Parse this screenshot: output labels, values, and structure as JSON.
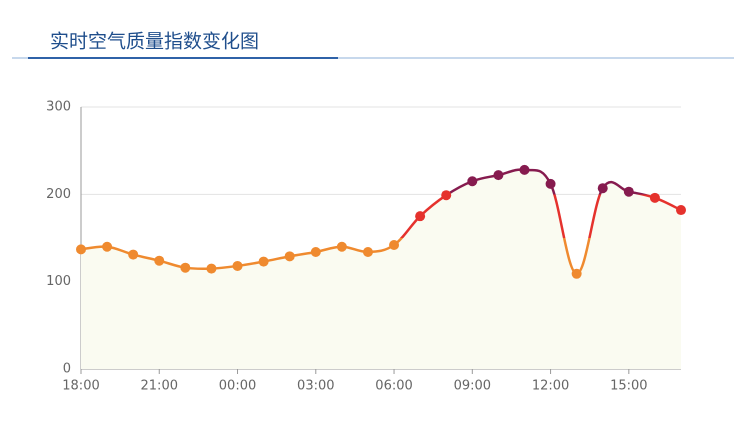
{
  "chart_data": {
    "type": "line",
    "title": "实时空气质量指数变化图",
    "categories": [
      "18:00",
      null,
      null,
      "21:00",
      null,
      null,
      "00:00",
      null,
      null,
      "03:00",
      null,
      null,
      "06:00",
      null,
      null,
      "09:00",
      null,
      null,
      "12:00",
      null,
      null,
      "15:00",
      null,
      null
    ],
    "series": [
      {
        "values": [
          137,
          140,
          131,
          124,
          116,
          115,
          118,
          123,
          129,
          134,
          140,
          134,
          142,
          175,
          199,
          215,
          222,
          228,
          212,
          109,
          207,
          203,
          196,
          182
        ]
      }
    ],
    "color_pieces": [
      {
        "max": 150,
        "color": "#ef8a2f"
      },
      {
        "min": 150,
        "max": 200,
        "color": "#e5322d"
      },
      {
        "min": 200,
        "color": "#861b4f"
      }
    ],
    "area_color": "#fafbf1",
    "ylim": [
      0,
      300
    ],
    "yticks": [
      0,
      100,
      200,
      300
    ],
    "grid": true
  }
}
